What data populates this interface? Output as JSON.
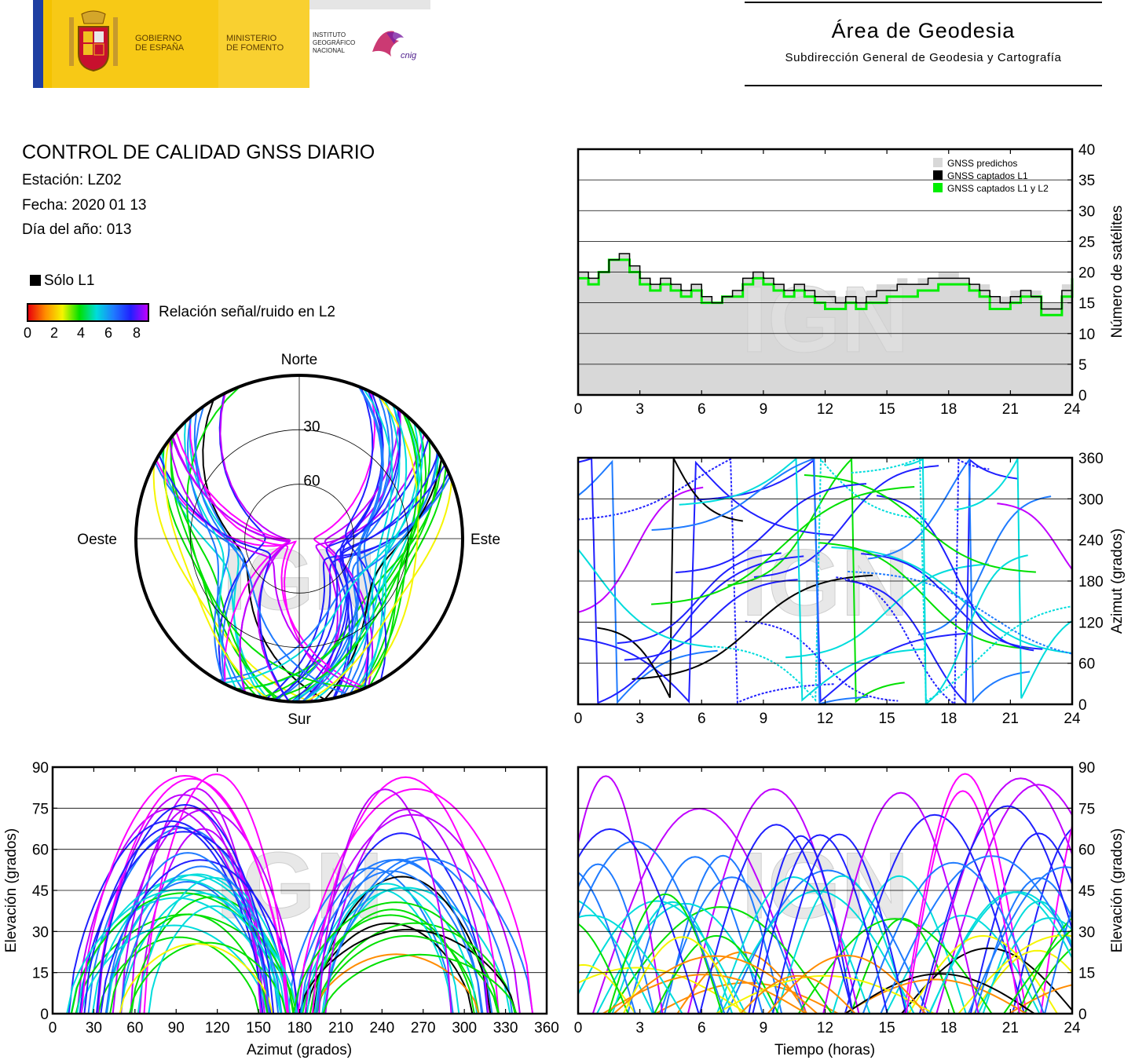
{
  "header": {
    "gov_line1": "GOBIERNO",
    "gov_line2": "DE ESPAÑA",
    "ministry_line1": "MINISTERIO",
    "ministry_line2": "DE FOMENTO",
    "ign_line1": "INSTITUTO",
    "ign_line2": "GEOGRÁFICO",
    "ign_line3": "NACIONAL",
    "cnig_logo_text": "cnig",
    "area_title": "Área de Geodesia",
    "area_subtitle": "Subdirección General de Geodesia y Cartografía"
  },
  "report": {
    "title": "CONTROL DE CALIDAD GNSS DIARIO",
    "station": "Estación: LZ02",
    "date": "Fecha: 2020 01 13",
    "doy": "Día del año: 013",
    "legend_l1": "Sólo L1",
    "snr_label": "Relación señal/ruido en L2",
    "snr_ticks": [
      "0",
      "2",
      "4",
      "6",
      "8"
    ]
  },
  "colors": {
    "snr_scale": [
      "#e8000b",
      "#ff8c00",
      "#f5f500",
      "#00e000",
      "#00dcdc",
      "#1f7bff",
      "#2020ff",
      "#c000ff",
      "#ff00ff"
    ],
    "only_l1": "#000000",
    "predicted": "#d8d8d8",
    "captured_l1l2": "#00ee00",
    "captured_l1": "#000000"
  },
  "watermark": "IGN",
  "chart_data": [
    {
      "id": "satellite-count",
      "type": "area",
      "xlabel": "",
      "ylabel": "Número de satélites",
      "xlim": [
        0,
        24
      ],
      "ylim": [
        0,
        40
      ],
      "xticks": [
        "0",
        "3",
        "6",
        "9",
        "12",
        "15",
        "18",
        "21",
        "24"
      ],
      "yticks": [
        "0",
        "5",
        "10",
        "15",
        "20",
        "25",
        "30",
        "35",
        "40"
      ],
      "grid": true,
      "legend_position": "top-right",
      "legend": [
        "GNSS predichos",
        "GNSS captados L1",
        "GNSS captados L1 y L2"
      ],
      "x": [
        0,
        0.5,
        1,
        1.5,
        2,
        2.5,
        3,
        3.5,
        4,
        4.5,
        5,
        5.5,
        6,
        6.5,
        7,
        7.5,
        8,
        8.5,
        9,
        9.5,
        10,
        10.5,
        11,
        11.5,
        12,
        12.5,
        13,
        13.5,
        14,
        14.5,
        15,
        15.5,
        16,
        16.5,
        17,
        17.5,
        18,
        18.5,
        19,
        19.5,
        20,
        20.5,
        21,
        21.5,
        22,
        22.5,
        23,
        23.5,
        24
      ],
      "series": [
        {
          "name": "GNSS predichos",
          "values": [
            20,
            19,
            20,
            22,
            23,
            21,
            19,
            18,
            19,
            18,
            17,
            18,
            16,
            15,
            16,
            17,
            19,
            20,
            19,
            18,
            17,
            18,
            17,
            17,
            17,
            16,
            17,
            16,
            17,
            18,
            18,
            19,
            18,
            19,
            19,
            20,
            20,
            19,
            18,
            18,
            16,
            16,
            17,
            17,
            17,
            15,
            15,
            18,
            20
          ]
        },
        {
          "name": "GNSS captados L1",
          "values": [
            20,
            19,
            20,
            22,
            23,
            21,
            19,
            18,
            19,
            18,
            17,
            18,
            16,
            15,
            16,
            17,
            19,
            20,
            19,
            18,
            17,
            18,
            17,
            16,
            16,
            15,
            16,
            15,
            16,
            17,
            17,
            18,
            18,
            18,
            19,
            19,
            19,
            19,
            18,
            17,
            16,
            15,
            16,
            17,
            16,
            14,
            14,
            17,
            20
          ]
        },
        {
          "name": "GNSS captados L1 y L2",
          "values": [
            19,
            18,
            20,
            22,
            22,
            20,
            18,
            17,
            18,
            17,
            16,
            17,
            15,
            15,
            16,
            16,
            18,
            19,
            18,
            17,
            16,
            17,
            16,
            15,
            14,
            14,
            15,
            14,
            15,
            15,
            16,
            16,
            16,
            17,
            17,
            18,
            18,
            18,
            17,
            16,
            14,
            14,
            15,
            16,
            16,
            13,
            13,
            16,
            19
          ]
        }
      ]
    },
    {
      "id": "azimuth-time",
      "type": "scatter",
      "xlabel": "",
      "ylabel": "Azimut (grados)",
      "xlim": [
        0,
        24
      ],
      "ylim": [
        0,
        360
      ],
      "xticks": [
        "0",
        "3",
        "6",
        "9",
        "12",
        "15",
        "18",
        "21",
        "24"
      ],
      "yticks": [
        "0",
        "60",
        "120",
        "180",
        "240",
        "300",
        "360"
      ],
      "grid": true
    },
    {
      "id": "skyplot",
      "type": "scatter",
      "labels": {
        "north": "Norte",
        "south": "Sur",
        "west": "Oeste",
        "east": "Este"
      },
      "ring_labels": [
        "30",
        "60"
      ],
      "grid": true
    },
    {
      "id": "elevation-azimuth",
      "type": "scatter",
      "xlabel": "Azimut (grados)",
      "ylabel": "Elevación (grados)",
      "xlim": [
        0,
        360
      ],
      "ylim": [
        0,
        90
      ],
      "xticks": [
        "0",
        "30",
        "60",
        "90",
        "120",
        "150",
        "180",
        "210",
        "240",
        "270",
        "300",
        "330",
        "360"
      ],
      "yticks": [
        "0",
        "15",
        "30",
        "45",
        "60",
        "75",
        "90"
      ],
      "grid": true
    },
    {
      "id": "elevation-time",
      "type": "scatter",
      "xlabel": "Tiempo (horas)",
      "ylabel": "Elevación (grados)",
      "xlim": [
        0,
        24
      ],
      "ylim": [
        0,
        90
      ],
      "xticks": [
        "0",
        "3",
        "6",
        "9",
        "12",
        "15",
        "18",
        "21",
        "24"
      ],
      "yticks": [
        "0",
        "15",
        "30",
        "45",
        "60",
        "75",
        "90"
      ],
      "grid": true
    }
  ]
}
